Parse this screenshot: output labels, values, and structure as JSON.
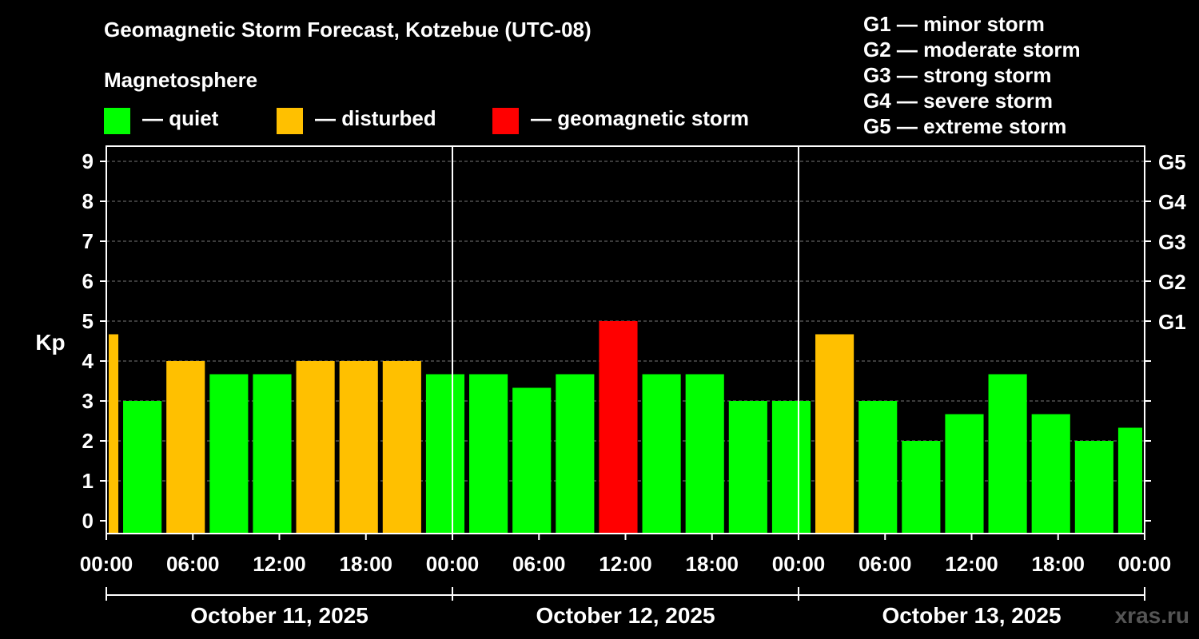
{
  "header": {
    "title": "Geomagnetic Storm Forecast, Kotzebue (UTC-08)",
    "magnetosphere_label": "Magnetosphere"
  },
  "legend": [
    {
      "label": "— quiet",
      "color": "#00ff00"
    },
    {
      "label": "— disturbed",
      "color": "#ffc000"
    },
    {
      "label": "— geomagnetic storm",
      "color": "#ff0000"
    }
  ],
  "g_scale": [
    "G1 — minor storm",
    "G2 — moderate storm",
    "G3 — strong storm",
    "G4 — severe storm",
    "G5 — extreme storm"
  ],
  "watermark": "xras.ru",
  "chart_data": {
    "type": "bar",
    "ylabel": "Kp",
    "ylim": [
      0,
      9
    ],
    "yticks": [
      "0",
      "1",
      "2",
      "3",
      "4",
      "5",
      "6",
      "7",
      "8",
      "9"
    ],
    "right_ticks": [
      {
        "kp": 5,
        "label": "G1"
      },
      {
        "kp": 6,
        "label": "G2"
      },
      {
        "kp": 7,
        "label": "G3"
      },
      {
        "kp": 8,
        "label": "G4"
      },
      {
        "kp": 9,
        "label": "G5"
      }
    ],
    "xticks": [
      "00:00",
      "06:00",
      "12:00",
      "18:00",
      "00:00",
      "06:00",
      "12:00",
      "18:00",
      "00:00",
      "06:00",
      "12:00",
      "18:00",
      "00:00"
    ],
    "days": [
      "October 11, 2025",
      "October 12, 2025",
      "October 13, 2025"
    ],
    "hours_total": 72,
    "grid": "horizontal dashed",
    "colors": {
      "quiet": "#00ff00",
      "disturbed": "#ffc000",
      "storm": "#ff0000"
    },
    "bars": [
      {
        "start_hour": 0,
        "end_hour": 1,
        "kp": 4.67,
        "level": "disturbed"
      },
      {
        "start_hour": 1,
        "end_hour": 4,
        "kp": 3.0,
        "level": "quiet"
      },
      {
        "start_hour": 4,
        "end_hour": 7,
        "kp": 4.0,
        "level": "disturbed"
      },
      {
        "start_hour": 7,
        "end_hour": 10,
        "kp": 3.67,
        "level": "quiet"
      },
      {
        "start_hour": 10,
        "end_hour": 13,
        "kp": 3.67,
        "level": "quiet"
      },
      {
        "start_hour": 13,
        "end_hour": 16,
        "kp": 4.0,
        "level": "disturbed"
      },
      {
        "start_hour": 16,
        "end_hour": 19,
        "kp": 4.0,
        "level": "disturbed"
      },
      {
        "start_hour": 19,
        "end_hour": 22,
        "kp": 4.0,
        "level": "disturbed"
      },
      {
        "start_hour": 22,
        "end_hour": 25,
        "kp": 3.67,
        "level": "quiet"
      },
      {
        "start_hour": 25,
        "end_hour": 28,
        "kp": 3.67,
        "level": "quiet"
      },
      {
        "start_hour": 28,
        "end_hour": 31,
        "kp": 3.33,
        "level": "quiet"
      },
      {
        "start_hour": 31,
        "end_hour": 34,
        "kp": 3.67,
        "level": "quiet"
      },
      {
        "start_hour": 34,
        "end_hour": 37,
        "kp": 5.0,
        "level": "storm"
      },
      {
        "start_hour": 37,
        "end_hour": 40,
        "kp": 3.67,
        "level": "quiet"
      },
      {
        "start_hour": 40,
        "end_hour": 43,
        "kp": 3.67,
        "level": "quiet"
      },
      {
        "start_hour": 43,
        "end_hour": 46,
        "kp": 3.0,
        "level": "quiet"
      },
      {
        "start_hour": 46,
        "end_hour": 49,
        "kp": 3.0,
        "level": "quiet"
      },
      {
        "start_hour": 49,
        "end_hour": 52,
        "kp": 4.67,
        "level": "disturbed"
      },
      {
        "start_hour": 52,
        "end_hour": 55,
        "kp": 3.0,
        "level": "quiet"
      },
      {
        "start_hour": 55,
        "end_hour": 58,
        "kp": 2.0,
        "level": "quiet"
      },
      {
        "start_hour": 58,
        "end_hour": 61,
        "kp": 2.67,
        "level": "quiet"
      },
      {
        "start_hour": 61,
        "end_hour": 64,
        "kp": 3.67,
        "level": "quiet"
      },
      {
        "start_hour": 64,
        "end_hour": 67,
        "kp": 2.67,
        "level": "quiet"
      },
      {
        "start_hour": 67,
        "end_hour": 70,
        "kp": 2.0,
        "level": "quiet"
      },
      {
        "start_hour": 70,
        "end_hour": 72,
        "kp": 2.33,
        "level": "quiet"
      }
    ]
  }
}
